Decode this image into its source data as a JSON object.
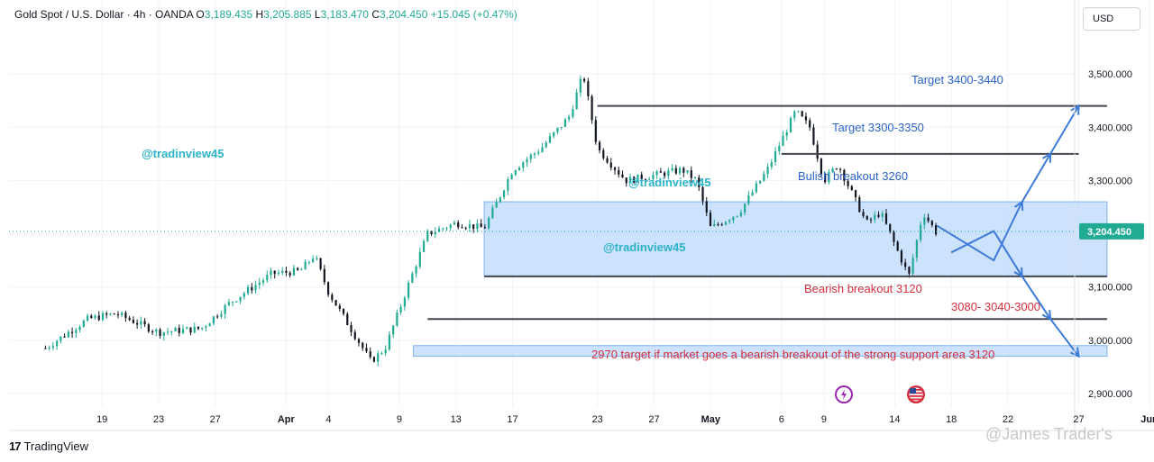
{
  "header": {
    "symbol": "Gold Spot / U.S. Dollar · 4h · OANDA",
    "o_label": "O",
    "o_value": "3,189.435",
    "h_label": "H",
    "h_value": "3,205.885",
    "l_label": "L",
    "l_value": "3,183.470",
    "c_label": "C",
    "c_value": "3,204.450",
    "change": "+15.045 (+0.47%)"
  },
  "currency_button": "USD",
  "watermarks": [
    "@tradinview45",
    "@tradinview45",
    "@tradinview45"
  ],
  "annotations": {
    "target_high": "Target 3400-3440",
    "target_mid": "Target 3300-3350",
    "bullish": "Bulish breakout 3260",
    "bearish": "Bearish breakout 3120",
    "bear_targets": "3080- 3040-3000",
    "bear_note": "2970 target if market goes a bearish breakout of the strong support area 3120"
  },
  "footer": {
    "brand_mark": "17",
    "brand": "TradingView",
    "author": "@James Trader's"
  },
  "colors": {
    "up": "#22ab94",
    "down": "#131722",
    "zone": "#bcd8fb",
    "blue_arrow": "#3d7bd9",
    "price_tag": "#22ab94"
  },
  "icons": [
    "lightning-icon",
    "us-flag-icon"
  ],
  "chart_data": {
    "type": "candlestick",
    "symbol": "Gold Spot / U.S. Dollar",
    "timeframe": "4h",
    "y_ticks": [
      2900,
      3000,
      3100,
      3200,
      3300,
      3400,
      3500
    ],
    "y_tick_labels": [
      "2,900.000",
      "3,000.000",
      "3,100.000",
      "3,200.000",
      "3,300.000",
      "3,400.000",
      "3,500.000"
    ],
    "ylim": [
      2850,
      3575
    ],
    "last_price": 3204.45,
    "last_price_label": "3,204.450",
    "x_tick_labels": [
      "19",
      "23",
      "27",
      "Apr",
      "4",
      "9",
      "13",
      "17",
      "23",
      "27",
      "May",
      "6",
      "9",
      "14",
      "18",
      "22",
      "27",
      "Jun"
    ],
    "x_tick_dates": [
      "2025-03-19",
      "2025-03-23",
      "2025-03-27",
      "2025-04-01",
      "2025-04-04",
      "2025-04-09",
      "2025-04-13",
      "2025-04-17",
      "2025-04-23",
      "2025-04-27",
      "2025-05-01",
      "2025-05-06",
      "2025-05-09",
      "2025-05-14",
      "2025-05-18",
      "2025-05-22",
      "2025-05-27",
      "2025-06-01"
    ],
    "price_path": [
      [
        "2025-03-15",
        2985
      ],
      [
        "2025-03-18",
        3040
      ],
      [
        "2025-03-20",
        3050
      ],
      [
        "2025-03-23",
        3015
      ],
      [
        "2025-03-26",
        3022
      ],
      [
        "2025-03-28",
        3070
      ],
      [
        "2025-03-31",
        3125
      ],
      [
        "2025-04-02",
        3130
      ],
      [
        "2025-04-03",
        3160
      ],
      [
        "2025-04-04",
        3090
      ],
      [
        "2025-04-07",
        2960
      ],
      [
        "2025-04-08",
        2985
      ],
      [
        "2025-04-10",
        3130
      ],
      [
        "2025-04-11",
        3200
      ],
      [
        "2025-04-13",
        3220
      ],
      [
        "2025-04-15",
        3210
      ],
      [
        "2025-04-17",
        3320
      ],
      [
        "2025-04-19",
        3360
      ],
      [
        "2025-04-21",
        3420
      ],
      [
        "2025-04-22",
        3500
      ],
      [
        "2025-04-23",
        3360
      ],
      [
        "2025-04-25",
        3300
      ],
      [
        "2025-04-27",
        3310
      ],
      [
        "2025-04-29",
        3320
      ],
      [
        "2025-04-30",
        3300
      ],
      [
        "2025-05-01",
        3210
      ],
      [
        "2025-05-03",
        3240
      ],
      [
        "2025-05-05",
        3320
      ],
      [
        "2025-05-07",
        3430
      ],
      [
        "2025-05-08",
        3400
      ],
      [
        "2025-05-09",
        3300
      ],
      [
        "2025-05-10",
        3330
      ],
      [
        "2025-05-12",
        3220
      ],
      [
        "2025-05-13",
        3240
      ],
      [
        "2025-05-14",
        3180
      ],
      [
        "2025-05-15",
        3120
      ],
      [
        "2025-05-16",
        3240
      ],
      [
        "2025-05-17",
        3200
      ]
    ],
    "levels": [
      {
        "value": 3440,
        "from": "2025-04-23",
        "to": "2025-05-29"
      },
      {
        "value": 3350,
        "from": "2025-05-06",
        "to": "2025-05-27"
      },
      {
        "value": 3120,
        "from": "2025-04-15",
        "to": "2025-05-29"
      },
      {
        "value": 3040,
        "from": "2025-04-11",
        "to": "2025-05-29"
      }
    ],
    "zones": [
      {
        "from_value": 3120,
        "to_value": 3260,
        "from": "2025-04-15",
        "to": "2025-05-29",
        "label": "strong support area"
      },
      {
        "from_value": 2970,
        "to_value": 2990,
        "from": "2025-04-10",
        "to": "2025-05-29",
        "label": "2970 target"
      }
    ],
    "projection_bullish": [
      [
        "2025-05-17",
        3215
      ],
      [
        "2025-05-21",
        3150
      ],
      [
        "2025-05-23",
        3260
      ],
      [
        "2025-05-25",
        3350
      ],
      [
        "2025-05-27",
        3440
      ]
    ],
    "projection_bearish": [
      [
        "2025-05-18",
        3165
      ],
      [
        "2025-05-21",
        3205
      ],
      [
        "2025-05-23",
        3120
      ],
      [
        "2025-05-25",
        3040
      ],
      [
        "2025-05-27",
        2970
      ]
    ],
    "grid": true
  }
}
